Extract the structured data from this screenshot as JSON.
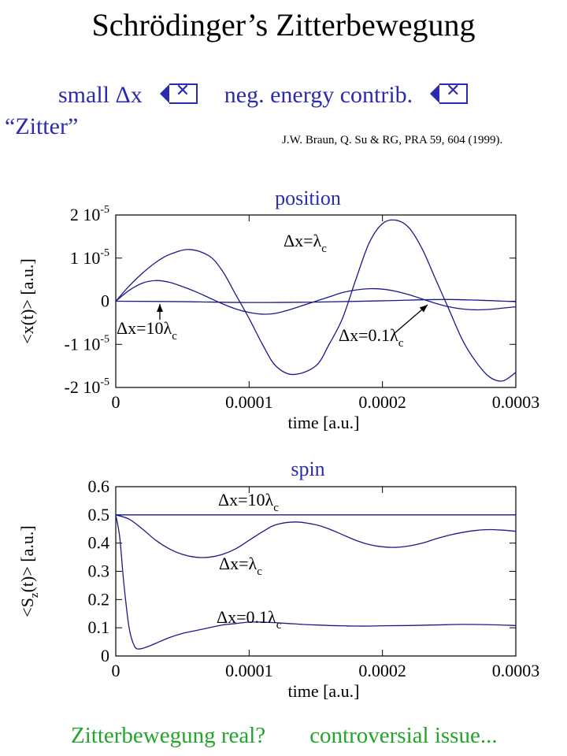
{
  "header": {
    "title_pre": "Schr",
    "title_mid": "ö",
    "title_post": "dinger’s Zitterbewegung",
    "line1_a": "small Δx",
    "line1_b": "neg. energy contrib.",
    "line2": "“Zitter”",
    "reference": "J.W. Braun, Q. Su & RG, PRA 59, 604 (1999)."
  },
  "footer": {
    "left": "Zitterbewegung real?",
    "right": "controversial issue..."
  },
  "colors": {
    "accent": "#2b2bb0",
    "curve": "#1a1a8c",
    "footer": "#22a52a"
  },
  "chart_data": [
    {
      "type": "line",
      "title": "position",
      "xlabel": "time [a.u.]",
      "ylabel": "<x(t)> [a.u.]",
      "xlim": [
        0,
        0.0003
      ],
      "ylim": [
        -2e-05,
        2e-05
      ],
      "x_ticks": [
        0,
        0.0001,
        0.0002,
        0.0003
      ],
      "x_tick_labels": [
        "0",
        "0.0001",
        "0.0002",
        "0.0003"
      ],
      "y_ticks": [
        2e-05,
        1e-05,
        0,
        -1e-05,
        -2e-05
      ],
      "y_tick_labels": [
        "2 10-5",
        "1 10-5",
        "0",
        "-1 10-5",
        "-2 10-5"
      ],
      "series": [
        {
          "name": "Δx=λc",
          "x": [
            0,
            1e-05,
            2e-05,
            3e-05,
            4e-05,
            5.5e-05,
            7e-05,
            8e-05,
            9e-05,
            0.0001,
            0.00011,
            0.00012,
            0.000133,
            0.00015,
            0.00016,
            0.00017,
            0.00018,
            0.00019,
            0.0002,
            0.00021,
            0.00022,
            0.00023,
            0.00024,
            0.00025,
            0.00026,
            0.00027,
            0.00028,
            0.00029,
            0.0003
          ],
          "y": [
            0,
            3.5e-06,
            6.5e-06,
            9e-06,
            1.08e-05,
            1.2e-05,
            1.05e-05,
            7e-06,
            1.5e-06,
            -4e-06,
            -1e-05,
            -1.5e-05,
            -1.7e-05,
            -1.5e-05,
            -1e-05,
            -4e-06,
            5e-06,
            1.35e-05,
            1.8e-05,
            1.88e-05,
            1.7e-05,
            1.2e-05,
            5e-06,
            -2e-06,
            -9e-06,
            -1.4e-05,
            -1.75e-05,
            -1.85e-05,
            -1.65e-05
          ]
        },
        {
          "name": "Δx=10λc",
          "x": [
            0,
            1e-05,
            2e-05,
            3e-05,
            4e-05,
            5e-05,
            6e-05,
            7e-05,
            8e-05,
            9e-05,
            0.0001,
            0.00011,
            0.00012,
            0.00013,
            0.00014,
            0.00015,
            0.00016,
            0.00017,
            0.00018,
            0.00019,
            0.0002,
            0.00021,
            0.00022,
            0.00023,
            0.00024,
            0.00025,
            0.00026,
            0.00027,
            0.00028,
            0.00029,
            0.0003
          ],
          "y": [
            0,
            2.5e-06,
            4.2e-06,
            4.8e-06,
            4.4e-06,
            3.4e-06,
            2.2e-06,
            8e-07,
            -6e-07,
            -1.8e-06,
            -2.6e-06,
            -3e-06,
            -2.8e-06,
            -2e-06,
            -1e-06,
            0,
            1e-06,
            2e-06,
            2.6e-06,
            2.9e-06,
            2.8e-06,
            2.3e-06,
            1.5e-06,
            5e-07,
            -5e-07,
            -1.3e-06,
            -1.8e-06,
            -2e-06,
            -1.9e-06,
            -1.6e-06,
            -1.3e-06
          ]
        },
        {
          "name": "Δx=0.1λc",
          "x": [
            0,
            5e-05,
            0.0001,
            0.00015,
            0.0002,
            0.00025,
            0.0003
          ],
          "y": [
            0,
            -1e-07,
            -3e-07,
            -2e-07,
            1e-07,
            4e-07,
            -1e-07
          ]
        }
      ],
      "annotations": [
        "Δx=λc",
        "Δx=10λc",
        "Δx=0.1λc"
      ]
    },
    {
      "type": "line",
      "title": "spin",
      "xlabel": "time [a.u.]",
      "ylabel": "<Sz(t)> [a.u.]",
      "xlim": [
        0,
        0.0003
      ],
      "ylim": [
        0,
        0.6
      ],
      "x_ticks": [
        0,
        0.0001,
        0.0002,
        0.0003
      ],
      "x_tick_labels": [
        "0",
        "0.0001",
        "0.0002",
        "0.0003"
      ],
      "y_ticks": [
        0,
        0.1,
        0.2,
        0.3,
        0.4,
        0.5,
        0.6
      ],
      "y_tick_labels": [
        "0",
        "0.1",
        "0.2",
        "0.3",
        "0.4",
        "0.5",
        "0.6"
      ],
      "series": [
        {
          "name": "Δx=10λc",
          "x": [
            0,
            0.0003
          ],
          "y": [
            0.5,
            0.5
          ]
        },
        {
          "name": "Δx=λc",
          "x": [
            0,
            1e-05,
            2e-05,
            3e-05,
            4e-05,
            5e-05,
            6e-05,
            7e-05,
            8e-05,
            9e-05,
            0.0001,
            0.00011,
            0.00012,
            0.000135,
            0.00015,
            0.00016,
            0.00017,
            0.00018,
            0.00019,
            0.0002,
            0.00021,
            0.00022,
            0.00023,
            0.00024,
            0.00025,
            0.00026,
            0.00027,
            0.00028,
            0.00029,
            0.0003
          ],
          "y": [
            0.5,
            0.485,
            0.45,
            0.41,
            0.38,
            0.36,
            0.35,
            0.35,
            0.36,
            0.38,
            0.41,
            0.44,
            0.465,
            0.475,
            0.465,
            0.45,
            0.43,
            0.41,
            0.395,
            0.387,
            0.385,
            0.39,
            0.4,
            0.415,
            0.428,
            0.438,
            0.445,
            0.448,
            0.446,
            0.442
          ]
        },
        {
          "name": "Δx=0.1λc",
          "x": [
            0,
            3e-06,
            6e-06,
            1e-05,
            1.4e-05,
            1.8e-05,
            2.5e-05,
            3e-05,
            4e-05,
            5e-05,
            6e-05,
            7e-05,
            8e-05,
            9e-05,
            0.0001,
            0.00011,
            0.00012,
            0.00013,
            0.00014,
            0.00015,
            0.00016,
            0.00017,
            0.00018,
            0.00019,
            0.0002,
            0.00022,
            0.00024,
            0.00026,
            0.00028,
            0.0003
          ],
          "y": [
            0.5,
            0.42,
            0.26,
            0.1,
            0.035,
            0.025,
            0.035,
            0.045,
            0.065,
            0.08,
            0.09,
            0.1,
            0.11,
            0.115,
            0.12,
            0.12,
            0.118,
            0.115,
            0.112,
            0.11,
            0.108,
            0.107,
            0.106,
            0.106,
            0.107,
            0.108,
            0.11,
            0.112,
            0.111,
            0.108
          ]
        }
      ],
      "annotations": [
        "Δx=10λc",
        "Δx=λc",
        "Δx=0.1λc"
      ]
    }
  ]
}
